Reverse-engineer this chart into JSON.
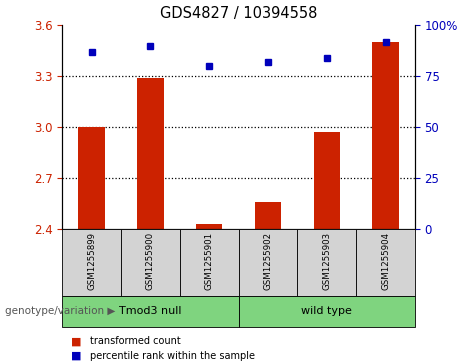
{
  "title": "GDS4827 / 10394558",
  "samples": [
    "GSM1255899",
    "GSM1255900",
    "GSM1255901",
    "GSM1255902",
    "GSM1255903",
    "GSM1255904"
  ],
  "red_values": [
    3.0,
    3.29,
    2.43,
    2.56,
    2.97,
    3.5
  ],
  "blue_values": [
    87,
    90,
    80,
    82,
    84,
    92
  ],
  "ylim_left": [
    2.4,
    3.6
  ],
  "ylim_right": [
    0,
    100
  ],
  "yticks_left": [
    2.4,
    2.7,
    3.0,
    3.3,
    3.6
  ],
  "yticks_right": [
    0,
    25,
    50,
    75,
    100
  ],
  "hlines": [
    2.7,
    3.0,
    3.3
  ],
  "group_label": "genotype/variation",
  "legend_red": "transformed count",
  "legend_blue": "percentile rank within the sample",
  "bar_color": "#CC2200",
  "dot_color": "#0000BB",
  "tick_color_left": "#CC2200",
  "tick_color_right": "#0000BB",
  "bar_baseline": 2.4,
  "groups": [
    {
      "label": "Tmod3 null",
      "start": 0,
      "end": 2,
      "color": "#7FD47F"
    },
    {
      "label": "wild type",
      "start": 3,
      "end": 5,
      "color": "#7FD47F"
    }
  ]
}
